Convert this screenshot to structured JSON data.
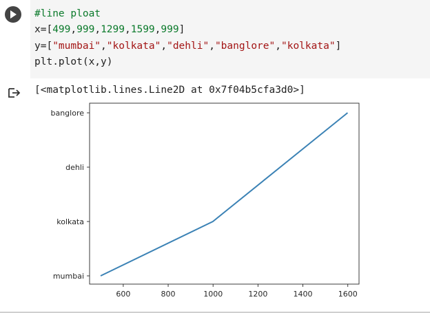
{
  "cell": {
    "code_lines": [
      [
        {
          "t": "comment",
          "v": "#line ploat"
        }
      ],
      [
        {
          "t": "plain",
          "v": "x=["
        },
        {
          "t": "number",
          "v": "499"
        },
        {
          "t": "plain",
          "v": ","
        },
        {
          "t": "number",
          "v": "999"
        },
        {
          "t": "plain",
          "v": ","
        },
        {
          "t": "number",
          "v": "1299"
        },
        {
          "t": "plain",
          "v": ","
        },
        {
          "t": "number",
          "v": "1599"
        },
        {
          "t": "plain",
          "v": ","
        },
        {
          "t": "number",
          "v": "999"
        },
        {
          "t": "plain",
          "v": "]"
        }
      ],
      [
        {
          "t": "plain",
          "v": "y=["
        },
        {
          "t": "string",
          "v": "\"mumbai\""
        },
        {
          "t": "plain",
          "v": ","
        },
        {
          "t": "string",
          "v": "\"kolkata\""
        },
        {
          "t": "plain",
          "v": ","
        },
        {
          "t": "string",
          "v": "\"dehli\""
        },
        {
          "t": "plain",
          "v": ","
        },
        {
          "t": "string",
          "v": "\"banglore\""
        },
        {
          "t": "plain",
          "v": ","
        },
        {
          "t": "string",
          "v": "\"kolkata\""
        },
        {
          "t": "plain",
          "v": "]"
        }
      ],
      [
        {
          "t": "plain",
          "v": "plt.plot(x,y)"
        }
      ]
    ]
  },
  "output": {
    "text": "[<matplotlib.lines.Line2D at 0x7f04b5cfa3d0>]"
  },
  "colors": {
    "line": "#3b82b5",
    "run_button": "#444444",
    "code_bg": "#f5f5f5"
  },
  "chart_data": {
    "type": "line",
    "x": [
      499,
      999,
      1299,
      1599,
      999
    ],
    "y": [
      "mumbai",
      "kolkata",
      "dehli",
      "banglore",
      "kolkata"
    ],
    "categories_y": [
      "mumbai",
      "kolkata",
      "dehli",
      "banglore"
    ],
    "xticks": [
      600,
      800,
      1000,
      1200,
      1400,
      1600
    ],
    "xlim": [
      450,
      1650
    ],
    "title": "",
    "xlabel": "",
    "ylabel": "",
    "grid": false
  }
}
